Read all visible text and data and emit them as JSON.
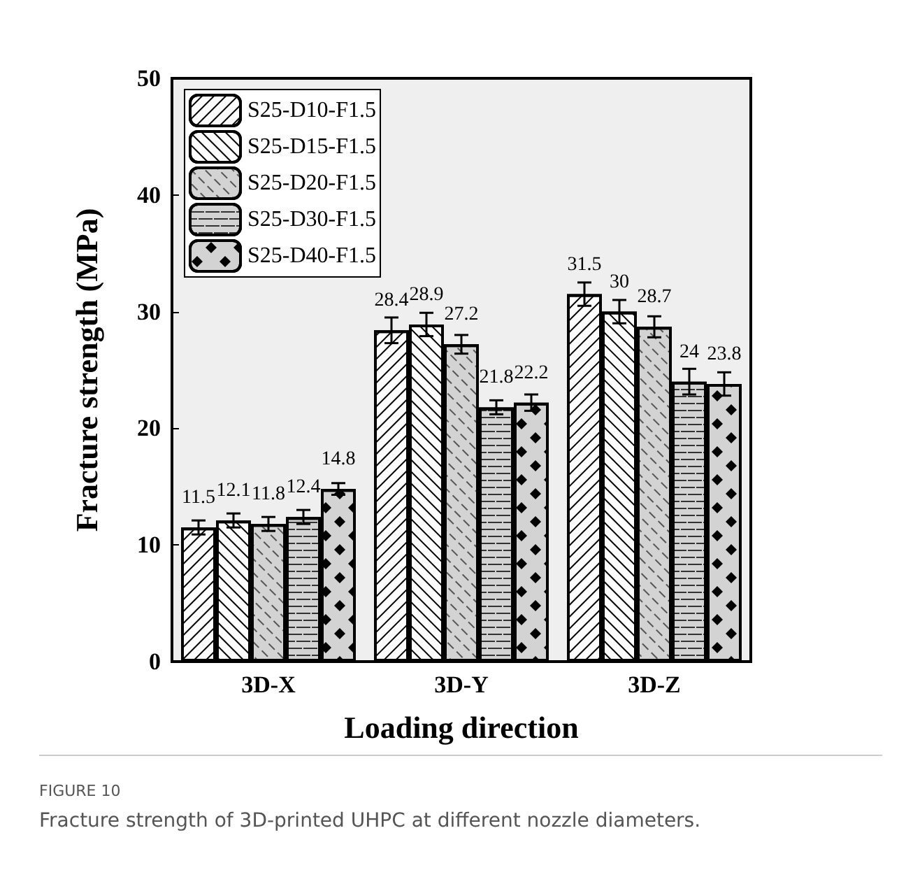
{
  "chart_data": {
    "type": "bar",
    "xlabel": "Loading direction",
    "ylabel": "Fracture strength (MPa)",
    "categories": [
      "3D-X",
      "3D-Y",
      "3D-Z"
    ],
    "series": [
      {
        "name": "S25-D10-F1.5",
        "color": "#ffffff",
        "values": [
          11.5,
          28.4,
          31.5
        ],
        "errors": [
          0.6,
          1.1,
          1.0
        ]
      },
      {
        "name": "S25-D15-F1.5",
        "color": "#ffffff",
        "values": [
          12.1,
          28.9,
          30
        ],
        "errors": [
          0.6,
          1.0,
          1.0
        ]
      },
      {
        "name": "S25-D20-F1.5",
        "color": "#d3d3d3",
        "values": [
          11.8,
          27.2,
          28.7
        ],
        "errors": [
          0.6,
          0.8,
          0.9
        ]
      },
      {
        "name": "S25-D30-F1.5",
        "color": "#d3d3d3",
        "values": [
          12.4,
          21.8,
          24
        ],
        "errors": [
          0.6,
          0.6,
          1.1
        ]
      },
      {
        "name": "S25-D40-F1.5",
        "color": "#d3d3d3",
        "values": [
          14.8,
          22.2,
          23.8
        ],
        "errors": [
          0.5,
          0.7,
          1.0
        ]
      }
    ],
    "ylim": [
      0,
      50
    ],
    "yticks": [
      0,
      10,
      20,
      30,
      40,
      50
    ],
    "grid": false,
    "legend": "top left",
    "data_labels": true,
    "annotations": [
      "FIGURE 10",
      "Fracture strength of 3D-printed UHPC at different nozzle diameters."
    ]
  }
}
